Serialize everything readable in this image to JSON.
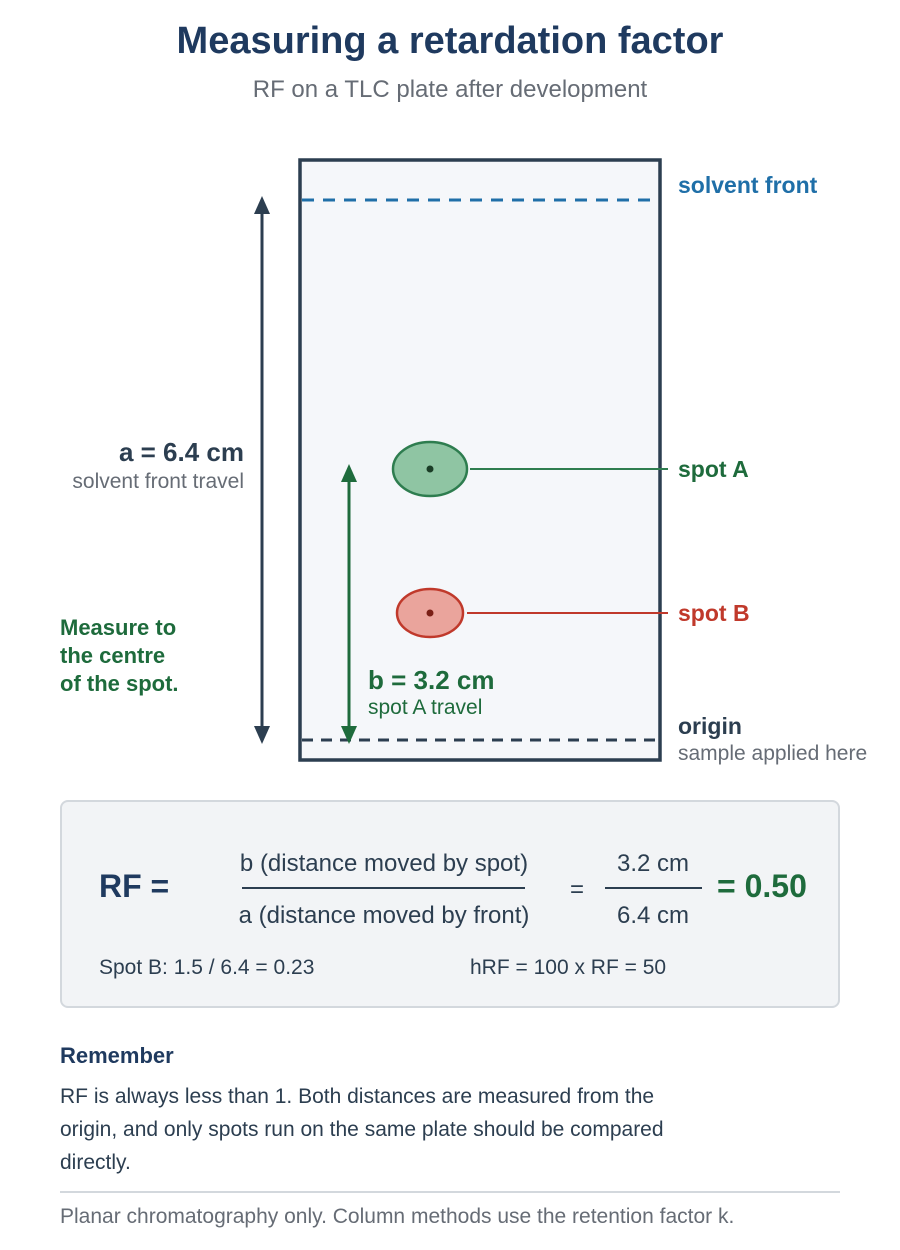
{
  "header": {
    "title": "Measuring a retardation factor",
    "subtitle": "RF on a TLC plate after development"
  },
  "plate": {
    "solvent_front_label": "solvent front",
    "origin_label": "origin",
    "origin_sub": "sample applied here",
    "spot_a_label": "spot A",
    "spot_b_label": "spot B"
  },
  "dimensions": {
    "a_label": "a = 6.4 cm",
    "a_sub": "solvent front travel",
    "b_label": "b = 3.2 cm",
    "b_sub": "spot A travel"
  },
  "note": {
    "line1": "Measure to",
    "line2": "the centre",
    "line3": "of the spot."
  },
  "formula": {
    "lhs": "RF =",
    "numerator": "b (distance moved by spot)",
    "denominator": "a (distance moved by front)",
    "equals": "=",
    "num_value": "3.2 cm",
    "den_value": "6.4 cm",
    "result": "= 0.50",
    "spot_b_calc": "Spot B: 1.5 / 6.4 = 0.23",
    "hrf": "hRF = 100 x RF = 50"
  },
  "remember": {
    "heading": "Remember",
    "text": "RF is always less than 1. Both distances are measured from the origin, and only spots run on the same plate should be compared directly."
  },
  "footer": {
    "text": "Planar chromatography only. Column methods use the retention factor k."
  },
  "colors": {
    "navy": "#2c3e50",
    "title": "#1f3a5f",
    "solvent_blue": "#1f6fa8",
    "spot_a_fill": "#8fc5a3",
    "spot_a_stroke": "#2e7d4f",
    "spot_b_fill": "#eaa49c",
    "spot_b_stroke": "#c0392b",
    "green_text": "#1e6b3c"
  }
}
